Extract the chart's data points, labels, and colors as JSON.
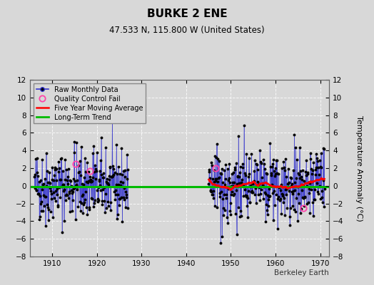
{
  "title": "BURKE 2 ENE",
  "subtitle": "47.533 N, 115.800 W (United States)",
  "ylabel": "Temperature Anomaly (°C)",
  "xlim": [
    1905,
    1972
  ],
  "ylim": [
    -8,
    12
  ],
  "yticks": [
    -8,
    -6,
    -4,
    -2,
    0,
    2,
    4,
    6,
    8,
    10,
    12
  ],
  "xticks": [
    1910,
    1920,
    1930,
    1940,
    1950,
    1960,
    1970
  ],
  "bg_color": "#d8d8d8",
  "plot_bg_color": "#d8d8d8",
  "raw_line_color": "#3333cc",
  "raw_marker_color": "#000000",
  "qc_fail_color": "#ff44aa",
  "moving_avg_color": "#ff0000",
  "trend_color": "#00bb00",
  "watermark": "Berkeley Earth",
  "seed": 42,
  "period1_start": 1906,
  "period1_end": 1926,
  "period2_start": 1945,
  "period2_end": 1970,
  "qc_times": [
    1915.3,
    1918.5,
    1946.5,
    1966.3
  ],
  "qc_values": [
    2.5,
    1.7,
    2.0,
    -2.5
  ]
}
